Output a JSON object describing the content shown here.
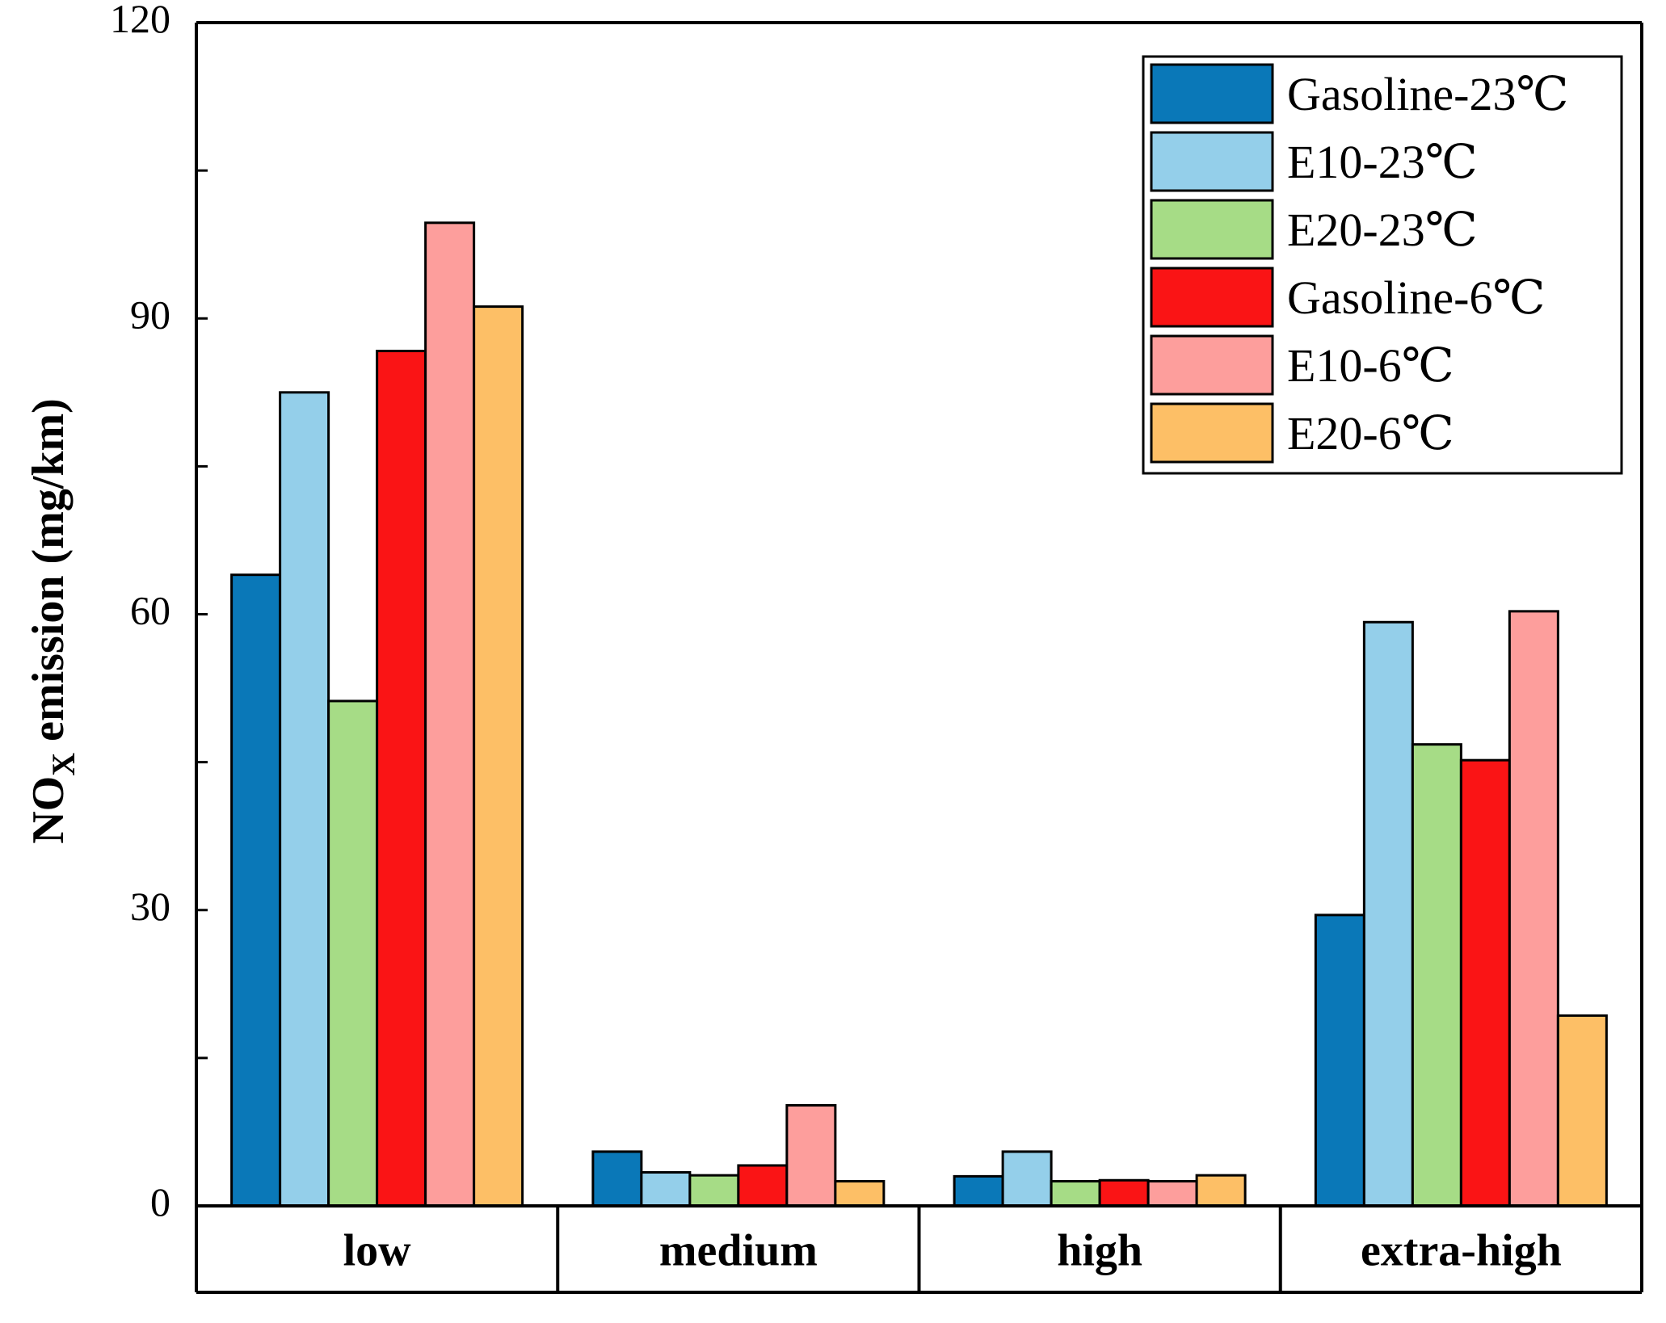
{
  "chart_data": {
    "type": "bar",
    "title": "",
    "xlabel": "",
    "ylabel_main": "NO",
    "ylabel_sub": "X",
    "ylabel_rest": " emission (mg/km)",
    "ylim": [
      0,
      120
    ],
    "yticks": [
      0,
      30,
      60,
      90,
      120
    ],
    "ytick_labels": [
      "0",
      "30",
      "60",
      "90",
      "120"
    ],
    "grid": false,
    "legend_position": "top-right",
    "categories": [
      "low",
      "medium",
      "high",
      "extra-high"
    ],
    "series": [
      {
        "name": "Gasoline-23℃",
        "color": "#0a78b8",
        "values": [
          64.0,
          5.5,
          3.0,
          29.5
        ]
      },
      {
        "name": "E10-23℃",
        "color": "#94cfea",
        "values": [
          82.5,
          3.4,
          5.5,
          59.2
        ]
      },
      {
        "name": "E20-23℃",
        "color": "#a6dc86",
        "values": [
          51.2,
          3.1,
          2.5,
          46.8
        ]
      },
      {
        "name": "Gasoline-6℃",
        "color": "#fa1415",
        "values": [
          86.7,
          4.1,
          2.6,
          45.2
        ]
      },
      {
        "name": "E10-6℃",
        "color": "#fd9e9c",
        "values": [
          99.7,
          10.2,
          2.5,
          60.3
        ]
      },
      {
        "name": "E20-6℃",
        "color": "#fdbf66",
        "values": [
          91.2,
          2.5,
          3.1,
          19.3
        ]
      }
    ]
  }
}
